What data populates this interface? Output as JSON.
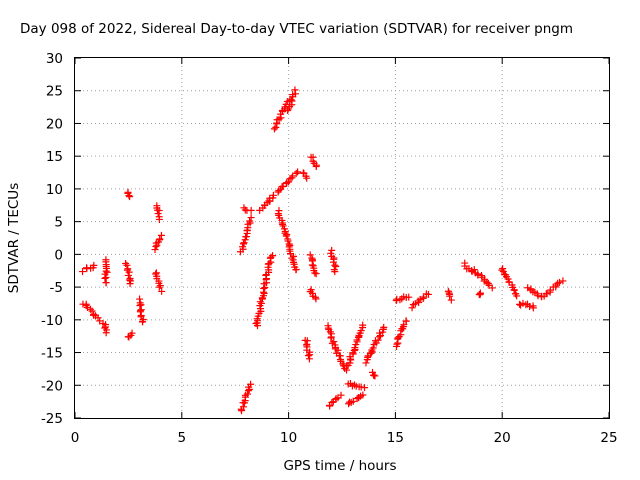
{
  "chart_data": {
    "type": "scatter",
    "title": "Day 098 of 2022, Sidereal Day-to-day VTEC variation (SDTVAR) for receiver pngm",
    "xlabel": "GPS time / hours",
    "ylabel": "SDTVAR / TECUs",
    "xlim": [
      0,
      25
    ],
    "ylim": [
      -25,
      30
    ],
    "xticks": [
      "0",
      "5",
      "10",
      "15",
      "20",
      "25"
    ],
    "yticks": [
      "-25",
      "-20",
      "-15",
      "-10",
      "-5",
      "0",
      "5",
      "10",
      "15",
      "20",
      "25",
      "30"
    ],
    "grid": true,
    "marker": "+",
    "color": "#ff0000",
    "segments": [
      {
        "x": [
          0.4,
          0.9
        ],
        "y": [
          -2.5,
          -1.8
        ]
      },
      {
        "x": [
          0.4,
          1.1
        ],
        "y": [
          -7.5,
          -10.0
        ]
      },
      {
        "x": [
          1.4,
          1.5
        ],
        "y": [
          -4.5,
          -0.8
        ]
      },
      {
        "x": [
          1.35,
          1.5
        ],
        "y": [
          -10.5,
          -12.0
        ]
      },
      {
        "x": [
          2.4,
          2.6
        ],
        "y": [
          -1.5,
          -4.5
        ]
      },
      {
        "x": [
          2.45,
          2.6
        ],
        "y": [
          9.5,
          8.8
        ]
      },
      {
        "x": [
          2.5,
          2.65
        ],
        "y": [
          -12.8,
          -12.2
        ]
      },
      {
        "x": [
          3.0,
          3.2
        ],
        "y": [
          -7.0,
          -10.5
        ]
      },
      {
        "x": [
          3.7,
          4.0
        ],
        "y": [
          0.8,
          2.8
        ]
      },
      {
        "x": [
          3.8,
          4.0
        ],
        "y": [
          7.5,
          5.5
        ]
      },
      {
        "x": [
          3.8,
          4.0
        ],
        "y": [
          -2.8,
          -5.5
        ]
      },
      {
        "x": [
          7.8,
          8.2
        ],
        "y": [
          0.5,
          5.5
        ]
      },
      {
        "x": [
          7.9,
          8.2
        ],
        "y": [
          7.0,
          6.6
        ]
      },
      {
        "x": [
          7.8,
          8.2
        ],
        "y": [
          -23.8,
          -20.0
        ]
      },
      {
        "x": [
          8.5,
          9.2
        ],
        "y": [
          -11.0,
          0.0
        ]
      },
      {
        "x": [
          8.7,
          9.3
        ],
        "y": [
          6.8,
          9.0
        ]
      },
      {
        "x": [
          9.3,
          10.0
        ],
        "y": [
          19.2,
          23.5
        ]
      },
      {
        "x": [
          10.0,
          10.3
        ],
        "y": [
          22.0,
          25.0
        ]
      },
      {
        "x": [
          9.5,
          10.4
        ],
        "y": [
          9.5,
          12.5
        ]
      },
      {
        "x": [
          9.5,
          10.4
        ],
        "y": [
          6.5,
          -2.5
        ]
      },
      {
        "x": [
          10.7,
          10.9
        ],
        "y": [
          12.5,
          11.6
        ]
      },
      {
        "x": [
          11.1,
          11.3
        ],
        "y": [
          15.0,
          13.5
        ]
      },
      {
        "x": [
          11.0,
          11.3
        ],
        "y": [
          -0.2,
          -3.0
        ]
      },
      {
        "x": [
          11.0,
          11.3
        ],
        "y": [
          -5.5,
          -6.8
        ]
      },
      {
        "x": [
          10.8,
          11.0
        ],
        "y": [
          -13.0,
          -15.8
        ]
      },
      {
        "x": [
          12.0,
          12.2
        ],
        "y": [
          0.5,
          -2.5
        ]
      },
      {
        "x": [
          11.8,
          12.6
        ],
        "y": [
          -11.0,
          -17.5
        ]
      },
      {
        "x": [
          11.9,
          12.4
        ],
        "y": [
          -23.2,
          -21.5
        ]
      },
      {
        "x": [
          12.7,
          13.5
        ],
        "y": [
          -17.5,
          -11.0
        ]
      },
      {
        "x": [
          12.8,
          13.5
        ],
        "y": [
          -19.8,
          -20.5
        ]
      },
      {
        "x": [
          12.8,
          13.5
        ],
        "y": [
          -22.8,
          -21.5
        ]
      },
      {
        "x": [
          13.6,
          14.5
        ],
        "y": [
          -16.5,
          -11.0
        ]
      },
      {
        "x": [
          13.9,
          14.1
        ],
        "y": [
          -18.2,
          -18.6
        ]
      },
      {
        "x": [
          15.0,
          15.5
        ],
        "y": [
          -14.0,
          -10.0
        ]
      },
      {
        "x": [
          15.0,
          15.6
        ],
        "y": [
          -7.0,
          -6.5
        ]
      },
      {
        "x": [
          15.8,
          16.5
        ],
        "y": [
          -8.0,
          -6.0
        ]
      },
      {
        "x": [
          17.5,
          17.6
        ],
        "y": [
          -5.5,
          -6.8
        ]
      },
      {
        "x": [
          18.2,
          18.6
        ],
        "y": [
          -1.5,
          -2.8
        ]
      },
      {
        "x": [
          18.7,
          19.5
        ],
        "y": [
          -2.5,
          -5.0
        ]
      },
      {
        "x": [
          18.9,
          19.0
        ],
        "y": [
          -6.2,
          -6.0
        ]
      },
      {
        "x": [
          20.0,
          20.7
        ],
        "y": [
          -2.0,
          -6.5
        ]
      },
      {
        "x": [
          20.8,
          21.5
        ],
        "y": [
          -7.5,
          -8.0
        ]
      },
      {
        "x": [
          21.2,
          21.8
        ],
        "y": [
          -5.0,
          -6.5
        ]
      },
      {
        "x": [
          21.9,
          22.8
        ],
        "y": [
          -6.5,
          -4.0
        ]
      }
    ]
  }
}
